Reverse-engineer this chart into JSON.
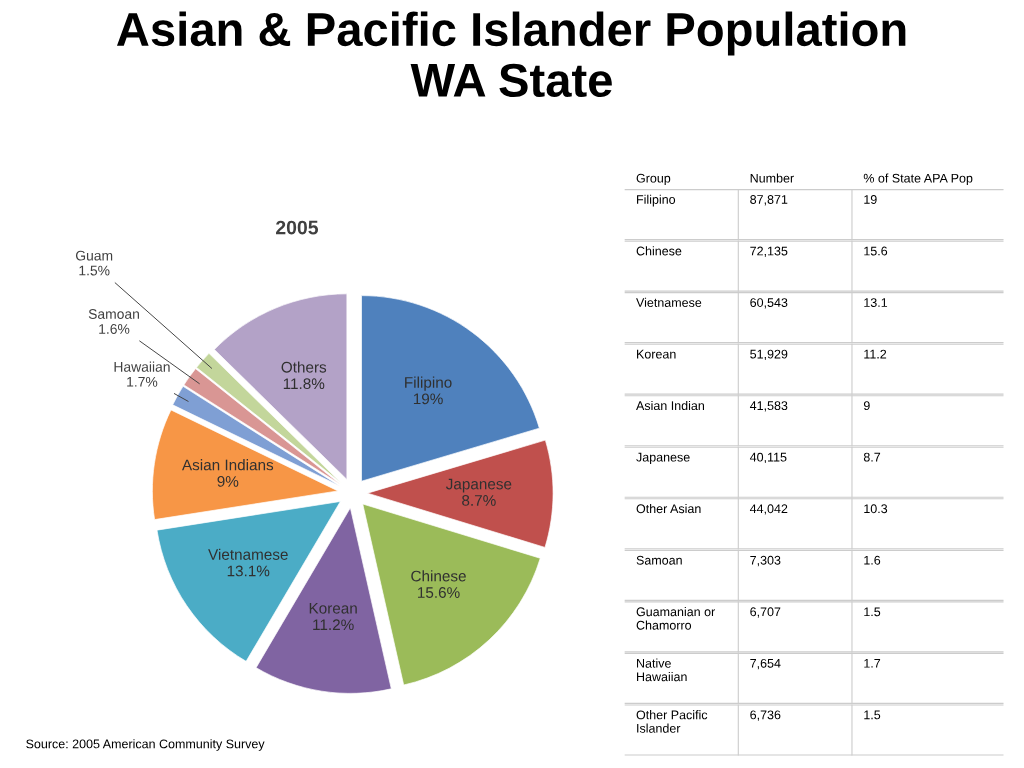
{
  "chart_data": [
    {
      "type": "pie",
      "title": "Asian & Pacific Islander Population\nWA State",
      "subtitle": "2005",
      "categories": [
        "Filipino",
        "Japanese",
        "Chinese",
        "Korean",
        "Vietnamese",
        "Asian Indians",
        "Hawaiian",
        "Samoan",
        "Guam",
        "Others"
      ],
      "values": [
        19,
        8.7,
        15.6,
        11.2,
        13.1,
        9,
        1.7,
        1.6,
        1.5,
        11.8
      ],
      "value_labels": [
        "19%",
        "8.7%",
        "15.6%",
        "11.2%",
        "13.1%",
        "9%",
        "1.7%",
        "1.6%",
        "1.5%",
        "11.8%"
      ],
      "colors": [
        "#4f81bd",
        "#c0504d",
        "#9bbb59",
        "#8064a2",
        "#4bacc6",
        "#f79646",
        "#7f9fd4",
        "#d99694",
        "#c3d69b",
        "#b3a2c7"
      ],
      "annotations": [
        "Source: 2005 American Community Survey"
      ]
    },
    {
      "type": "other",
      "categories": [
        "Group",
        "Number",
        "% of State APA Pop"
      ],
      "y_categories": [
        "Filipino",
        "Chinese",
        "Vietnamese",
        "Korean",
        "Asian Indian",
        "Japanese",
        "Other Asian",
        "Samoan",
        "Guamanian or\nChamorro",
        "Native\nHawaiian",
        "Other Pacific\nIslander"
      ],
      "cell_labels": [
        [
          "87,871",
          "19"
        ],
        [
          "72,135",
          "15.6"
        ],
        [
          "60,543",
          "13.1"
        ],
        [
          "51,929",
          "11.2"
        ],
        [
          "41,583",
          "9"
        ],
        [
          "40,115",
          "8.7"
        ],
        [
          "44,042",
          "10.3"
        ],
        [
          "7,303",
          "1.6"
        ],
        [
          "6,707",
          "1.5"
        ],
        [
          "7,654",
          "1.7"
        ],
        [
          "6,736",
          "1.5"
        ]
      ]
    }
  ]
}
